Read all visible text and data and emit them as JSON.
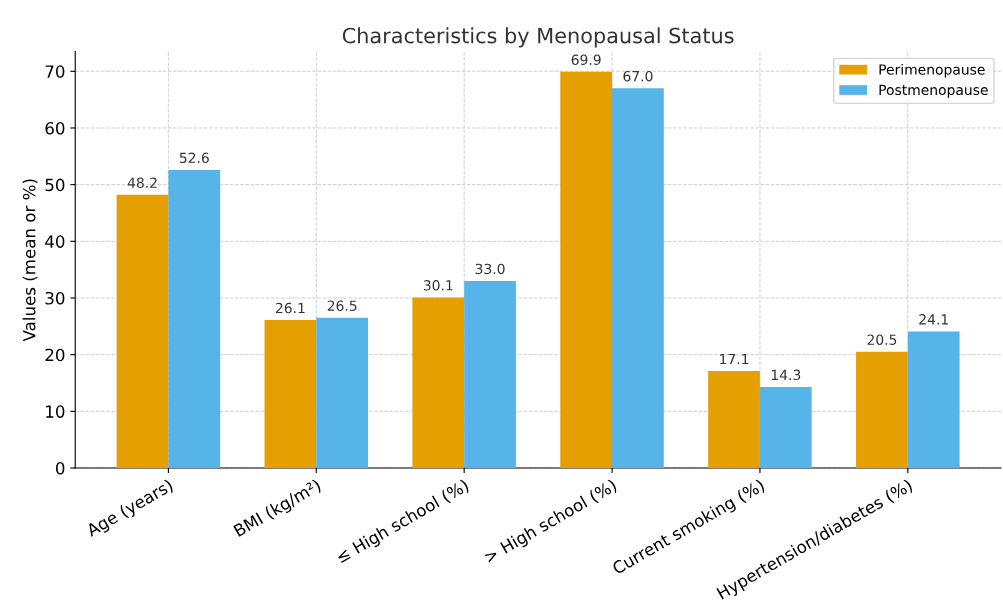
{
  "chart_data": {
    "type": "bar",
    "title": "Characteristics by Menopausal Status",
    "ylabel": "Values (mean or %)",
    "categories": [
      "Age (years)",
      "BMI (kg/m²)",
      "≤ High school (%)",
      "> High school (%)",
      "Current smoking (%)",
      "Hypertension/diabetes (%)"
    ],
    "series": [
      {
        "name": "Perimenopause",
        "color": "#e69f00",
        "values": [
          48.2,
          26.1,
          30.1,
          69.9,
          17.1,
          20.5
        ],
        "value_labels": [
          "48.2",
          "26.1",
          "30.1",
          "69.9",
          "17.1",
          "20.5"
        ]
      },
      {
        "name": "Postmenopause",
        "color": "#56b4e9",
        "values": [
          52.6,
          26.5,
          33.0,
          67.0,
          14.3,
          24.1
        ],
        "value_labels": [
          "52.6",
          "26.5",
          "33.0",
          "67.0",
          "14.3",
          "24.1"
        ]
      }
    ],
    "ylim": [
      0,
      73.5
    ],
    "yticks": [
      0,
      10,
      20,
      30,
      40,
      50,
      60,
      70
    ],
    "grid": true,
    "legend": "top right"
  }
}
